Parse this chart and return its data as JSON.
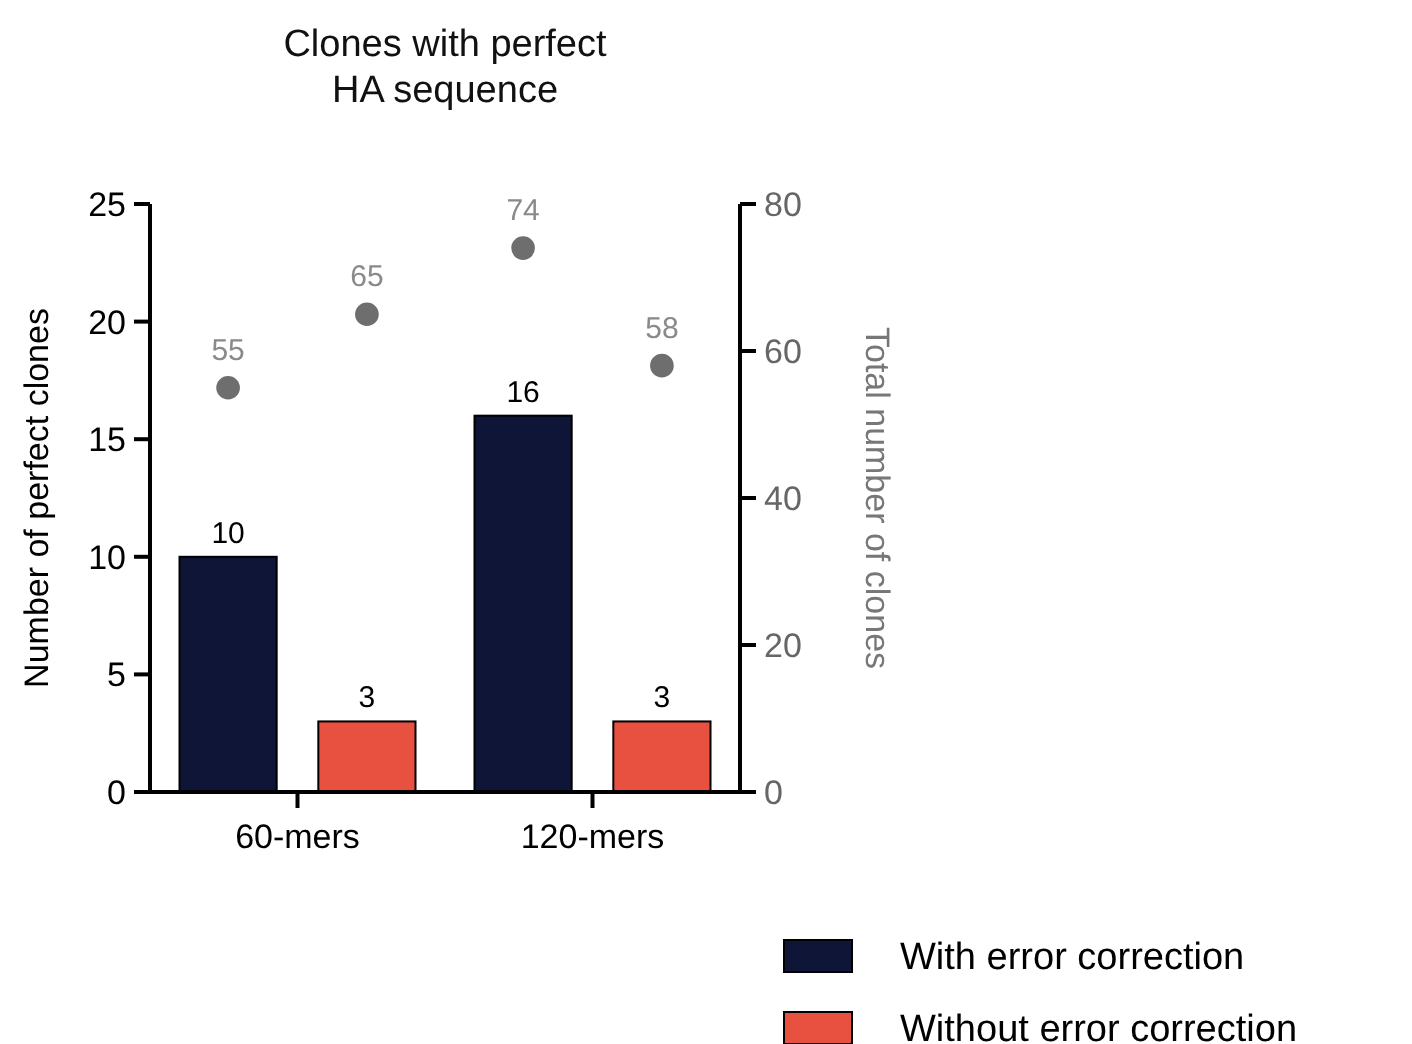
{
  "chart_data": {
    "type": "bar",
    "title": "Clones with perfect HA sequence",
    "categories": [
      "60-mers",
      "120-mers"
    ],
    "series": [
      {
        "name": "With error correction",
        "color": "#0f1537",
        "values": [
          10,
          16
        ]
      },
      {
        "name": "Without error correction",
        "color": "#e8503f",
        "values": [
          3,
          3
        ]
      },
      {
        "type": "scatter",
        "axis": "y2",
        "color": "#6e6e6e",
        "values": [
          55,
          74
        ]
      },
      {
        "type": "scatter",
        "axis": "y2",
        "color": "#6e6e6e",
        "values": [
          65,
          58
        ]
      }
    ],
    "ylabel": "Number of perfect clones",
    "y2label": "Total number of clones",
    "ylim": [
      0,
      25
    ],
    "yticks": [
      0,
      5,
      10,
      15,
      20,
      25
    ],
    "y2lim": [
      0,
      80
    ],
    "y2ticks": [
      0,
      20,
      40,
      60,
      80
    ],
    "data_labels": true,
    "legend": "bottom right",
    "marker": "circle",
    "grid": false
  }
}
